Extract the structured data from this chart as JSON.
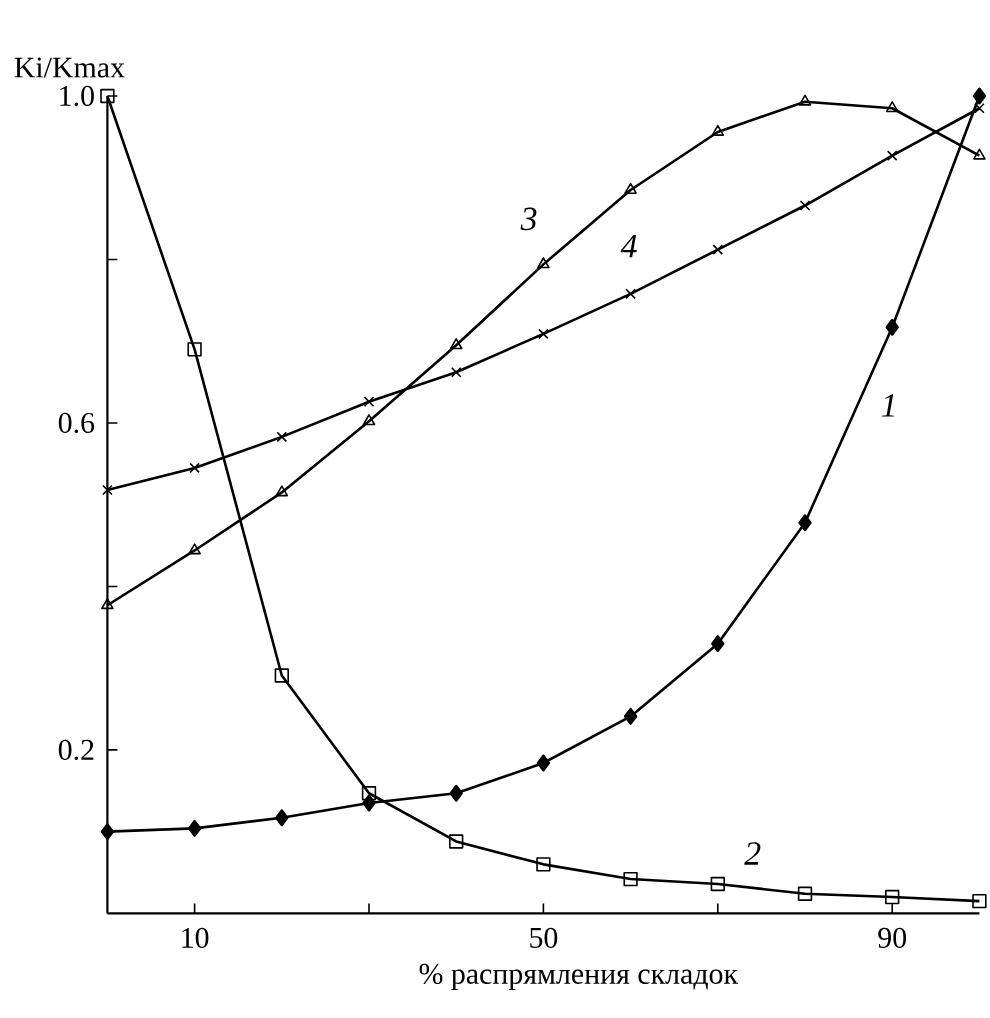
{
  "chart_data": {
    "type": "line",
    "ylabel": "Ki/Kmax",
    "xlabel": "% распрямления складок",
    "x": [
      0,
      10,
      20,
      30,
      40,
      50,
      60,
      70,
      80,
      90,
      100
    ],
    "series": [
      {
        "name": "1",
        "color": "#000000",
        "marker": "diamond",
        "values": [
          0.1,
          0.104,
          0.117,
          0.135,
          0.147,
          0.184,
          0.241,
          0.33,
          0.478,
          0.717,
          1.0
        ]
      },
      {
        "name": "2",
        "color": "#000000",
        "marker": "square",
        "values": [
          1.0,
          0.69,
          0.291,
          0.147,
          0.088,
          0.06,
          0.042,
          0.036,
          0.024,
          0.02,
          0.015
        ]
      },
      {
        "name": "3",
        "color": "#000000",
        "marker": "triangle",
        "values": [
          0.377,
          0.444,
          0.515,
          0.602,
          0.695,
          0.794,
          0.885,
          0.956,
          0.993,
          0.985,
          0.927
        ]
      },
      {
        "name": "4",
        "color": "#000000",
        "marker": "cross",
        "values": [
          0.518,
          0.545,
          0.583,
          0.626,
          0.662,
          0.709,
          0.758,
          0.812,
          0.866,
          0.927,
          0.985
        ]
      }
    ],
    "xlim": [
      0,
      100
    ],
    "xticks": [
      10,
      {
        "value": 30,
        "label": null
      },
      50,
      {
        "value": 70,
        "label": null
      },
      90
    ],
    "ylim": [
      0,
      1.0
    ],
    "yticks": [
      0.2,
      {
        "value": 0.4,
        "label": null
      },
      0.6,
      {
        "value": 0.8,
        "label": null
      },
      {
        "value": 1.0,
        "label": "1.0"
      }
    ],
    "grid": false,
    "line_style": "solid"
  }
}
